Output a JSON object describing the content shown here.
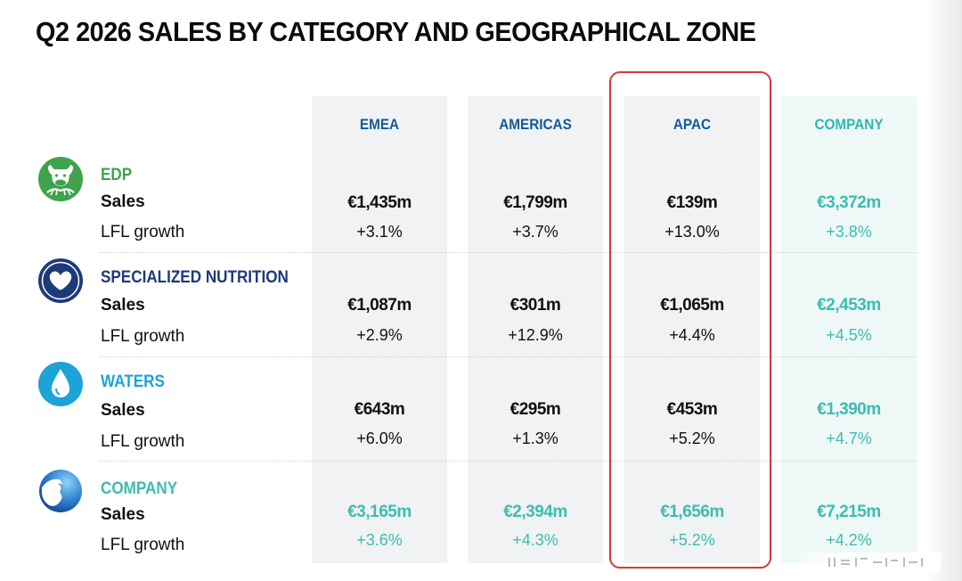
{
  "colors": {
    "title": "#0b0b0b",
    "region_header": "#0f5a9c",
    "company_teal": "#3dbcb1",
    "edp_green": "#3fa34d",
    "nutrition_navy": "#1d3a7a",
    "waters_blue": "#1ea3d6",
    "highlight_red": "#d63a34",
    "column_grey": "#f1f2f3"
  },
  "chart_data": {
    "type": "table",
    "title": "Q2 2026 SALES BY CATEGORY AND GEOGRAPHICAL ZONE",
    "columns": [
      "EMEA",
      "AMERICAS",
      "APAC",
      "COMPANY"
    ],
    "highlighted_column": "APAC",
    "row_labels": {
      "sales": "Sales",
      "growth": "LFL growth"
    },
    "categories": [
      {
        "name": "EDP",
        "icon": "cow-head-icon",
        "sales": [
          "€1,435m",
          "€1,799m",
          "€139m",
          "€3,372m"
        ],
        "growth": [
          "+3.1%",
          "+3.7%",
          "+13.0%",
          "+3.8%"
        ]
      },
      {
        "name": "SPECIALIZED NUTRITION",
        "icon": "heart-hand-icon",
        "sales": [
          "€1,087m",
          "€301m",
          "€1,065m",
          "€2,453m"
        ],
        "growth": [
          "+2.9%",
          "+12.9%",
          "+4.4%",
          "+4.5%"
        ]
      },
      {
        "name": "WATERS",
        "icon": "water-drop-icon",
        "sales": [
          "€643m",
          "€295m",
          "€453m",
          "€1,390m"
        ],
        "growth": [
          "+6.0%",
          "+1.3%",
          "+5.2%",
          "+4.7%"
        ]
      },
      {
        "name": "COMPANY",
        "icon": "company-logo-icon",
        "sales": [
          "€3,165m",
          "€2,394m",
          "€1,656m",
          "€7,215m"
        ],
        "growth": [
          "+3.6%",
          "+4.3%",
          "+5.2%",
          "+4.2%"
        ]
      }
    ]
  }
}
